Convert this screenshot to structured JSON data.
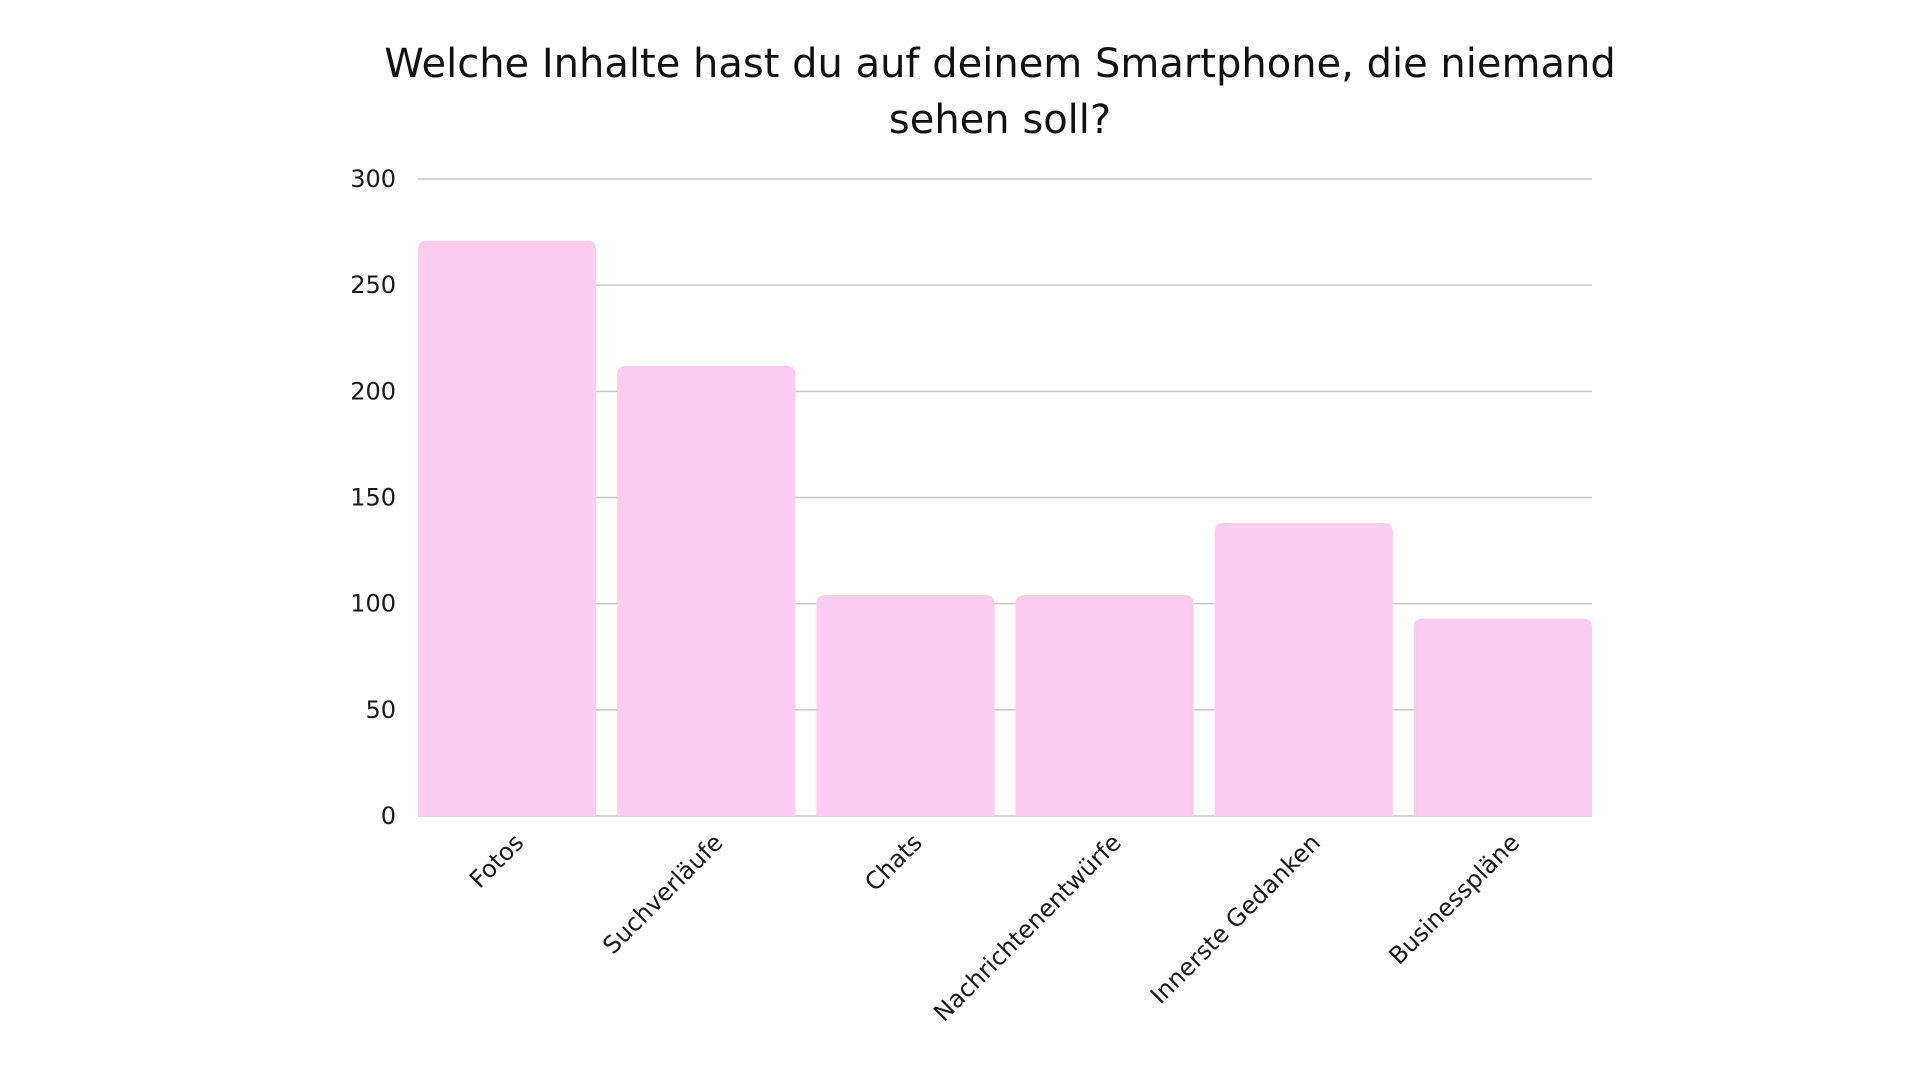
{
  "chart_data": {
    "type": "bar",
    "title": "Welche Inhalte hast du auf deinem Smartphone, die niemand sehen soll?",
    "xlabel": "",
    "ylabel": "",
    "categories": [
      "Fotos",
      "Suchverläufe",
      "Chats",
      "Nachrichtenentwürfe",
      "Innerste Gedanken",
      "Businesspläne"
    ],
    "values": [
      271,
      212,
      104,
      104,
      138,
      93
    ],
    "ylim": [
      0,
      300
    ],
    "yticks": [
      0,
      50,
      100,
      150,
      200,
      250,
      300
    ],
    "grid": true,
    "legend": false,
    "bar_color": "#fccdf0",
    "grid_color": "#c8c8c8"
  }
}
